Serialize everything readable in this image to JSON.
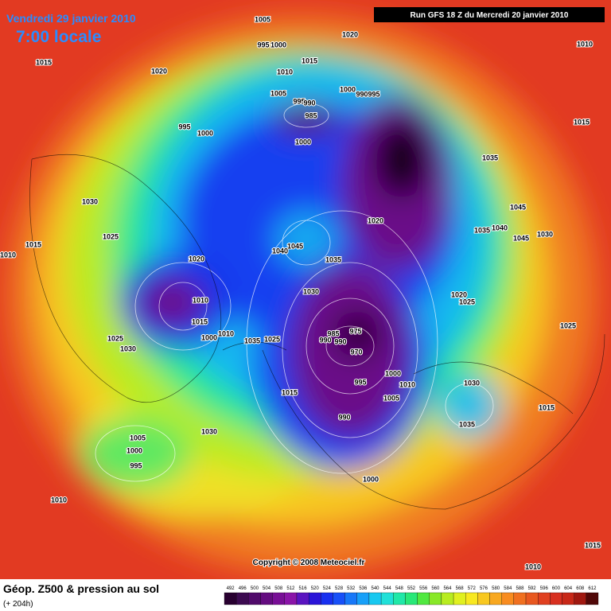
{
  "header": {
    "date": "Vendredi 29 janvier 2010",
    "time": "7:00 locale",
    "run": "Run GFS 18 Z du Mercredi 20 janvier 2010"
  },
  "footer": {
    "copyright": "Copyright © 2008 Meteociel.fr",
    "title": "Géop. Z500 & pression au sol",
    "lead": "(+ 204h)"
  },
  "map": {
    "labels": [
      1005,
      1020,
      1010,
      995,
      1000,
      1015,
      1020,
      1010,
      1015,
      1005,
      995,
      990,
      1000,
      990,
      995,
      985,
      995,
      1000,
      1015,
      1000,
      1035,
      1030,
      1045,
      1020,
      1025,
      1035,
      1040,
      1030,
      1045,
      1015,
      1010,
      1045,
      1040,
      1020,
      1035,
      1010,
      1030,
      1020,
      1025,
      1015,
      1010,
      1000,
      1025,
      1030,
      1035,
      1025,
      985,
      975,
      990,
      990,
      970,
      1025,
      1000,
      1010,
      995,
      1005,
      1015,
      1030,
      1015,
      990,
      1035,
      1030,
      1005,
      1000,
      995,
      1000,
      1010,
      1015,
      1010
    ]
  },
  "legend": {
    "scale": [
      492,
      496,
      500,
      504,
      508,
      512,
      516,
      520,
      524,
      528,
      532,
      536,
      540,
      544,
      548,
      552,
      556,
      560,
      564,
      568,
      572,
      576,
      580,
      584,
      588,
      592,
      596,
      600,
      604,
      608,
      612
    ],
    "colors": [
      "#280030",
      "#3c0a50",
      "#500a6a",
      "#640c80",
      "#780e96",
      "#8a14a8",
      "#5a14c0",
      "#2a14d8",
      "#1830f0",
      "#1850f8",
      "#1878f8",
      "#18a0f8",
      "#18c8f0",
      "#20e0d8",
      "#20e8a8",
      "#28e878",
      "#50e840",
      "#88e828",
      "#b8ec20",
      "#e0f020",
      "#f8e820",
      "#f8c820",
      "#f8a820",
      "#f88c20",
      "#f07020",
      "#e85820",
      "#e04020",
      "#d83020",
      "#c82818",
      "#a01810",
      "#500808"
    ]
  }
}
